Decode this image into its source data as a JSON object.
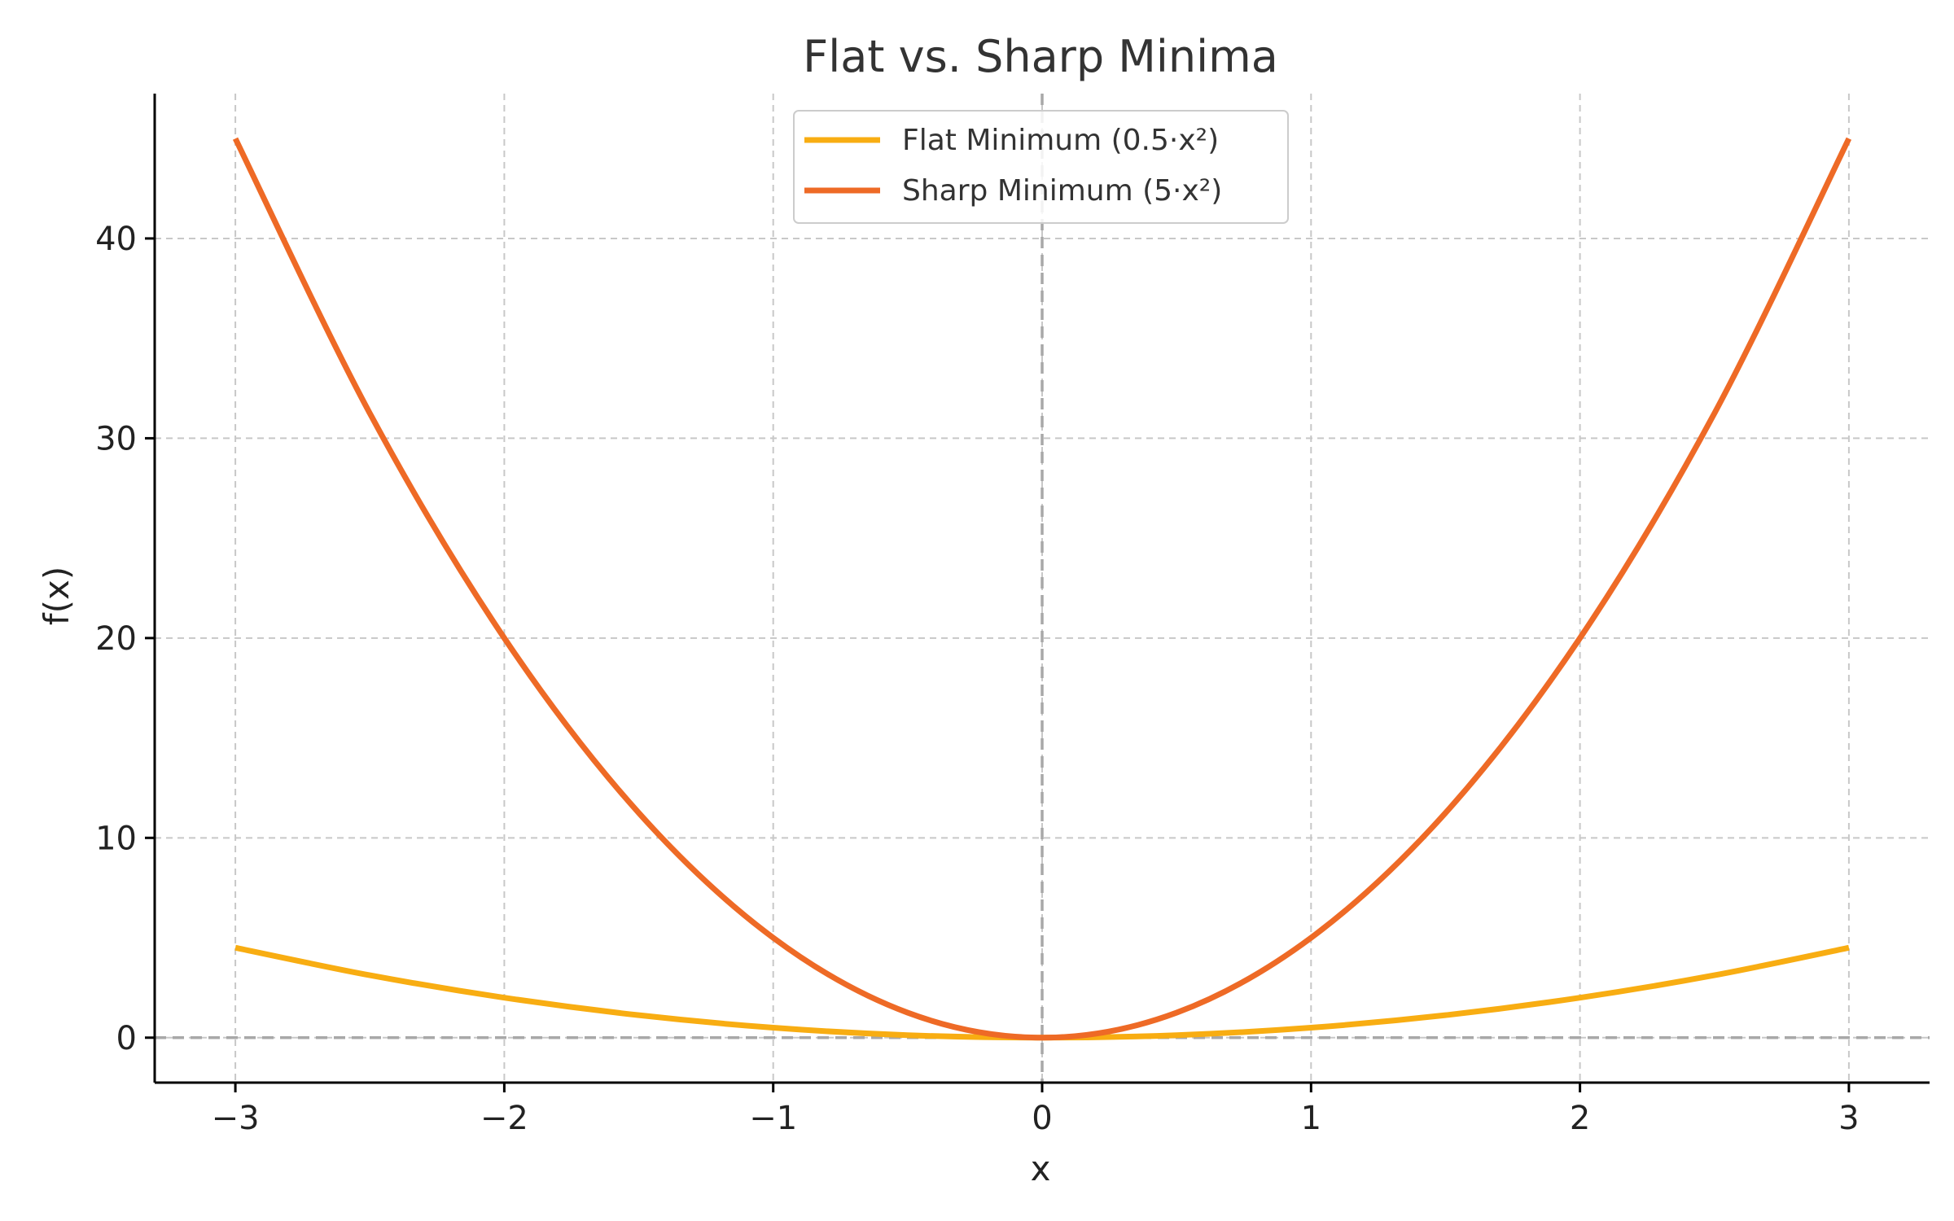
{
  "chart_data": {
    "type": "line",
    "title": "Flat vs. Sharp Minima",
    "xlabel": "x",
    "ylabel": "f(x)",
    "xlim": [
      -3.3,
      3.3
    ],
    "ylim": [
      -2.25,
      47.25
    ],
    "xticks": [
      -3,
      -2,
      -1,
      0,
      1,
      2,
      3
    ],
    "xtick_labels": [
      "−3",
      "−2",
      "−1",
      "0",
      "1",
      "2",
      "3"
    ],
    "yticks": [
      0,
      10,
      20,
      30,
      40
    ],
    "ytick_labels": [
      "0",
      "10",
      "20",
      "30",
      "40"
    ],
    "grid": true,
    "legend_position": "top-center",
    "reference_lines": {
      "x": 0,
      "y": 0
    },
    "series": [
      {
        "name": "Flat Minimum (0.5·x²)",
        "color": "#F8AD12",
        "x": [
          -3,
          -2.5,
          -2,
          -1.5,
          -1,
          -0.5,
          0,
          0.5,
          1,
          1.5,
          2,
          2.5,
          3
        ],
        "y": [
          4.5,
          3.125,
          2,
          1.125,
          0.5,
          0.125,
          0,
          0.125,
          0.5,
          1.125,
          2,
          3.125,
          4.5
        ]
      },
      {
        "name": "Sharp Minimum (5·x²)",
        "color": "#EE6A26",
        "x": [
          -3,
          -2.5,
          -2,
          -1.5,
          -1,
          -0.5,
          0,
          0.5,
          1,
          1.5,
          2,
          2.5,
          3
        ],
        "y": [
          45,
          31.25,
          20,
          11.25,
          5,
          1.25,
          0,
          1.25,
          5,
          11.25,
          20,
          31.25,
          45
        ]
      }
    ]
  }
}
